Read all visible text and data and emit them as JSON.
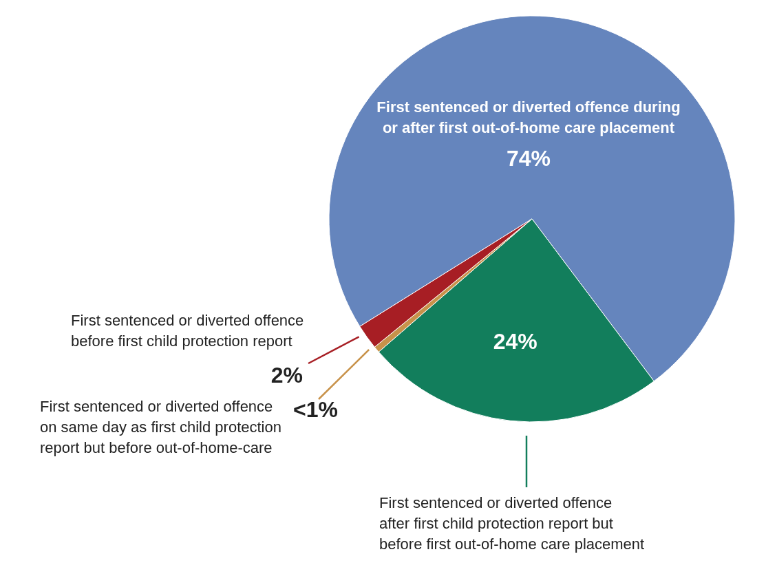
{
  "chart_data": {
    "type": "pie",
    "categories": [
      "First sentenced or diverted offence during or after first out-of-home care placement",
      "First sentenced or diverted offence after first child protection report but before first out-of-home care placement",
      "First sentenced or diverted offence on same day as first child protection report but before out-of-home-care",
      "First sentenced or diverted offence before first child protection report"
    ],
    "values": [
      74,
      24,
      0.5,
      2
    ],
    "value_labels": [
      "74%",
      "24%",
      "<1%",
      "2%"
    ],
    "colors": [
      "#6585bd",
      "#127e5c",
      "#c8924a",
      "#a71e24"
    ]
  }
}
